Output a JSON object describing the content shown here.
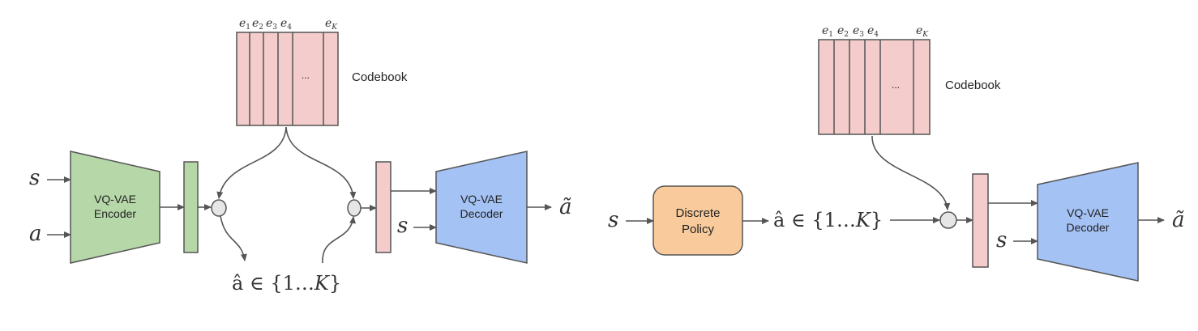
{
  "colors": {
    "codebook_fill": "#f4cccc",
    "encoder_fill": "#b6d7a8",
    "decoder_fill": "#a4c2f4",
    "policy_fill": "#f9cb9c",
    "node_fill": "#e6e6e6",
    "stroke": "#555555"
  },
  "training": {
    "codebook": {
      "entries": [
        "e",
        "e",
        "e",
        "e",
        "e"
      ],
      "subscripts": [
        "1",
        "2",
        "3",
        "4",
        "K"
      ],
      "ellipsis": "...",
      "label": "Codebook"
    },
    "inputs": {
      "s": "s",
      "a": "a"
    },
    "encoder": {
      "line1": "VQ-VAE",
      "line2": "Encoder"
    },
    "decoder": {
      "line1": "VQ-VAE",
      "line2": "Decoder",
      "input": "s"
    },
    "discrete_code": {
      "base": "â ∈ {1…",
      "var": "K",
      "close": "}"
    },
    "output": "ã"
  },
  "inference": {
    "codebook": {
      "entries": [
        "e",
        "e",
        "e",
        "e",
        "e"
      ],
      "subscripts": [
        "1",
        "2",
        "3",
        "4",
        "K"
      ],
      "ellipsis": "...",
      "label": "Codebook"
    },
    "input": "s",
    "policy": {
      "line1": "Discrete",
      "line2": "Policy"
    },
    "discrete_code": {
      "base": "â ∈ {1…",
      "var": "K",
      "close": "}"
    },
    "decoder": {
      "line1": "VQ-VAE",
      "line2": "Decoder",
      "input": "s"
    },
    "output": "ã"
  }
}
